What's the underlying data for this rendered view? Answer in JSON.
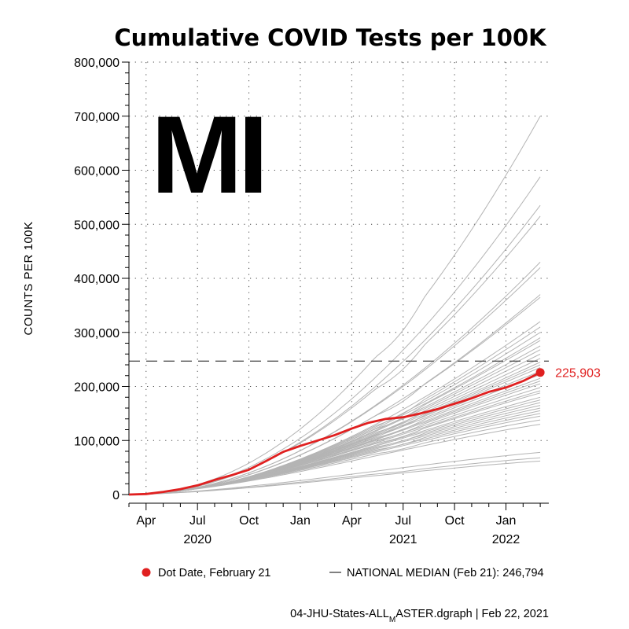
{
  "title": "Cumulative COVID Tests per 100K",
  "state": "MI",
  "colors": {
    "highlight": "#e02020",
    "background_lines": "#b4b4b4",
    "median": "#555555"
  },
  "chart_data": {
    "type": "line",
    "title": "Cumulative COVID Tests per 100K",
    "ylabel": "COUNTS PER 100K",
    "xlabel": "",
    "ylim": [
      0,
      800000
    ],
    "yticks": [
      0,
      100000,
      200000,
      300000,
      400000,
      500000,
      600000,
      700000,
      800000
    ],
    "ytick_labels": [
      "0",
      "100,000",
      "200,000",
      "300,000",
      "400,000",
      "500,000",
      "600,000",
      "700,000",
      "800,000"
    ],
    "xlim_months": [
      0,
      24.5
    ],
    "x_unit": "months since 2020-03-01",
    "xticks": [
      {
        "m": 1,
        "label": "Apr"
      },
      {
        "m": 4,
        "label": "Jul"
      },
      {
        "m": 7,
        "label": "Oct"
      },
      {
        "m": 10,
        "label": "Jan"
      },
      {
        "m": 13,
        "label": "Apr"
      },
      {
        "m": 16,
        "label": "Jul"
      },
      {
        "m": 19,
        "label": "Oct"
      },
      {
        "m": 22,
        "label": "Jan"
      }
    ],
    "year_labels": [
      {
        "m": 4,
        "label": "2020"
      },
      {
        "m": 16,
        "label": "2021"
      },
      {
        "m": 22,
        "label": "2022"
      }
    ],
    "grid": true,
    "highlight_series": {
      "name": "MI",
      "x": [
        0,
        1,
        2,
        3,
        4,
        5,
        6,
        7,
        8,
        9,
        10,
        11,
        12,
        13,
        14,
        15,
        16,
        17,
        18,
        19,
        20,
        21,
        22,
        23,
        24
      ],
      "y": [
        0,
        1000,
        5000,
        10000,
        17000,
        27000,
        36000,
        46000,
        62000,
        79000,
        90000,
        100000,
        110000,
        122000,
        133000,
        140000,
        143000,
        150000,
        158000,
        168000,
        178000,
        190000,
        198000,
        210000,
        225903
      ]
    },
    "end_value": 225903,
    "end_label": "225,903",
    "median": {
      "label": "NATIONAL MEDIAN (Feb 21): 246,794",
      "value": 246794
    },
    "background_series_final_values": [
      700000,
      588000,
      535000,
      515000,
      430000,
      420000,
      370000,
      365000,
      320000,
      310000,
      300000,
      290000,
      285000,
      275000,
      268000,
      260000,
      252000,
      245000,
      240000,
      235000,
      228000,
      222000,
      215000,
      210000,
      205000,
      198000,
      192000,
      188000,
      180000,
      175000,
      170000,
      165000,
      160000,
      155000,
      150000,
      145000,
      138000,
      130000,
      78000,
      68000,
      62000
    ],
    "legend": {
      "dot_label": "Dot Date, February 21",
      "median_label": "NATIONAL MEDIAN (Feb 21): 246,794"
    }
  },
  "footer": "04-JHU-States-ALL",
  "footer_sub": "M",
  "footer_rest": "ASTER.dgraph | Feb 22, 2021"
}
